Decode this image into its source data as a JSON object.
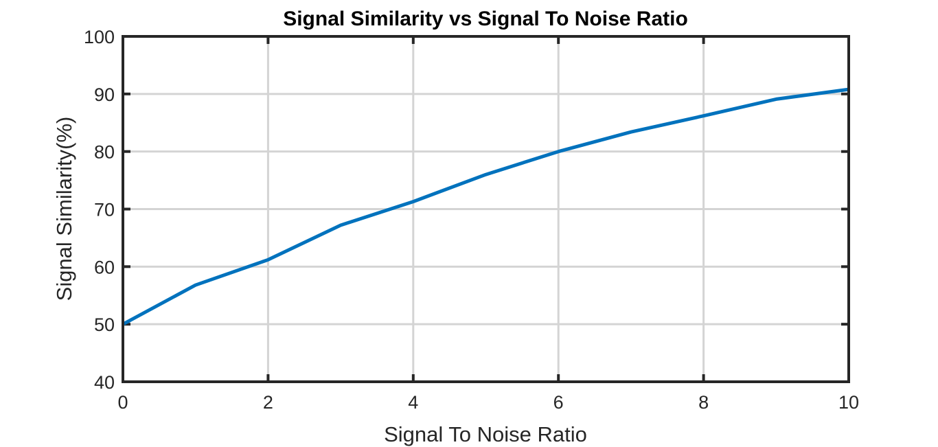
{
  "chart_data": {
    "type": "line",
    "title": "Signal Similarity vs Signal To Noise Ratio",
    "xlabel": "Signal To Noise Ratio",
    "ylabel": "Signal Similarity(%)",
    "xlim": [
      0,
      10
    ],
    "ylim": [
      40,
      100
    ],
    "xticks": [
      0,
      2,
      4,
      6,
      8,
      10
    ],
    "yticks": [
      40,
      50,
      60,
      70,
      80,
      90,
      100
    ],
    "grid": true,
    "series": [
      {
        "color": "#0072BD",
        "x": [
          0,
          1,
          2,
          3,
          4,
          5,
          6,
          7,
          8,
          9,
          10
        ],
        "y": [
          50.0,
          56.8,
          61.2,
          67.2,
          71.3,
          76.0,
          80.0,
          83.4,
          86.2,
          89.1,
          90.8
        ]
      }
    ]
  }
}
